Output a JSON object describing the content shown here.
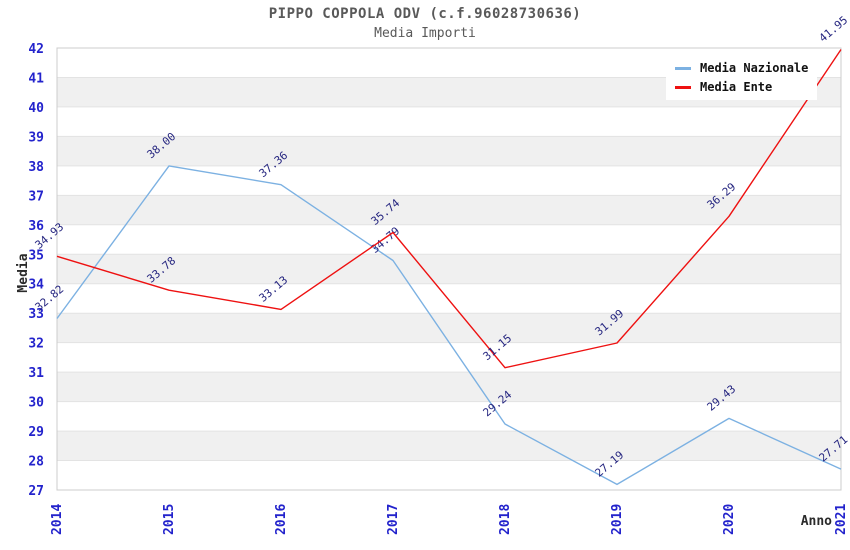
{
  "chart_data": {
    "type": "line",
    "title": "PIPPO COPPOLA ODV (c.f.96028730636)",
    "subtitle": "Media Importi",
    "xlabel": "Anno",
    "ylabel": "Media",
    "x": [
      "2014",
      "2015",
      "2016",
      "2017",
      "2018",
      "2019",
      "2020",
      "2021"
    ],
    "ylim": [
      27,
      42
    ],
    "ytick_step": 1,
    "grid": true,
    "legend_position": "top-right",
    "series": [
      {
        "name": "Media Nazionale",
        "color": "#7cb1e2",
        "values": [
          32.82,
          38.0,
          37.36,
          34.79,
          29.24,
          27.19,
          29.43,
          27.71
        ]
      },
      {
        "name": "Media Ente",
        "color": "#ee1111",
        "values": [
          34.93,
          33.78,
          33.13,
          35.74,
          31.15,
          31.99,
          36.29,
          41.95
        ]
      }
    ],
    "colors": {
      "band": "#f0f0f0",
      "grid": "#e3e3e3",
      "border": "#cccccc",
      "tick_label": "#2323cc",
      "point_label": "#262680",
      "axis_title": "#2b2b2b",
      "title": "#595959"
    }
  }
}
